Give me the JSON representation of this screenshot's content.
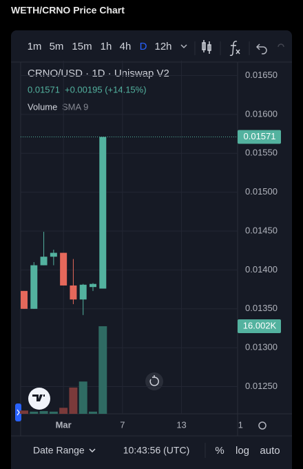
{
  "page_title": "WETH/CRNO Price Chart",
  "toolbar": {
    "intervals": [
      "1m",
      "5m",
      "15m",
      "1h",
      "4h",
      "D",
      "12h"
    ],
    "selected": 5
  },
  "legend": {
    "title": "CRNO/USD · 1D · Uniswap V2",
    "last": "0.01571",
    "change": "+0.00195 (+14.15%)",
    "volume": "Volume",
    "volume_study": "SMA 9"
  },
  "chart_data": {
    "type": "candlestick",
    "x": [
      0,
      1,
      2,
      3,
      4,
      5,
      6,
      7,
      8
    ],
    "open": [
      0.01373,
      0.0135,
      0.01406,
      0.01417,
      0.01422,
      0.0138,
      0.01362,
      0.01378,
      0.01376
    ],
    "high": [
      0.01373,
      0.0141,
      0.01449,
      0.01426,
      0.01422,
      0.01414,
      0.01382,
      0.01383,
      0.01571
    ],
    "low": [
      0.0135,
      0.0135,
      0.01406,
      0.01406,
      0.0138,
      0.01356,
      0.01342,
      0.01373,
      0.01376
    ],
    "close": [
      0.0135,
      0.01406,
      0.01417,
      0.01422,
      0.0138,
      0.01362,
      0.01381,
      0.01382,
      0.01571
    ],
    "close_labels": [
      null,
      null,
      null,
      null,
      null,
      null,
      null,
      null,
      "0.01571"
    ],
    "up_color": "#53b29f",
    "down_color": "#e5685b",
    "volume": {
      "axis": "y2",
      "up_color": "#2f6b63",
      "down_color": "#7a3a3a",
      "values": [
        600,
        400,
        500,
        400,
        1100,
        4800,
        5900,
        400,
        16002
      ],
      "value_labels": [
        null,
        null,
        null,
        null,
        null,
        null,
        null,
        null,
        "16.002K"
      ]
    },
    "ylim": [
      0.01215,
      0.01669
    ],
    "yticks": [
      {
        "value": 0.0125,
        "label": "0.01250"
      },
      {
        "value": 0.013,
        "label": "0.01300"
      },
      {
        "value": 0.0135,
        "label": "0.01350"
      },
      {
        "value": 0.014,
        "label": "0.01400"
      },
      {
        "value": 0.0145,
        "label": "0.01450"
      },
      {
        "value": 0.015,
        "label": "0.01500"
      },
      {
        "value": 0.0155,
        "label": "0.01550"
      },
      {
        "value": 0.016,
        "label": "0.01600"
      },
      {
        "value": 0.0165,
        "label": "0.01650"
      }
    ],
    "y2lim": [
      0,
      64500
    ],
    "xlim": [
      -0.35,
      21.7
    ],
    "xticks": [
      {
        "value": 4,
        "label": "Mar"
      },
      {
        "value": 10,
        "label": "7"
      },
      {
        "value": 16,
        "label": "13"
      },
      {
        "value": 22,
        "label": "1"
      }
    ],
    "grid": true
  },
  "footer": {
    "date_range": "Date Range",
    "time": "10:43:56 (UTC)",
    "percent": "%",
    "log": "log",
    "auto": "auto"
  }
}
